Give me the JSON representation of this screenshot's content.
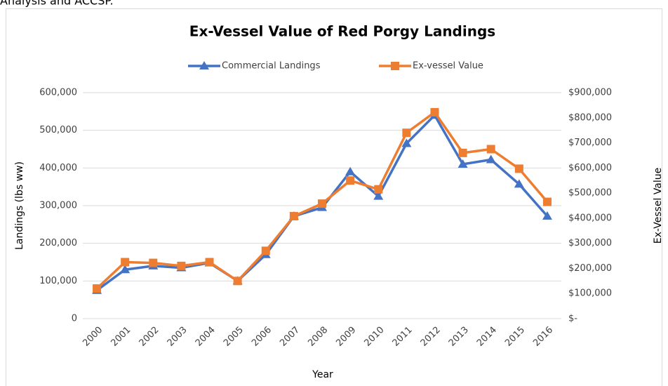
{
  "header_text": "Analysis and ACCSP.",
  "chart_data": {
    "type": "line",
    "title": "Ex-Vessel Value of Red Porgy Landings",
    "xlabel": "Year",
    "ylabel": "Landings (lbs ww)",
    "y2label": "Ex-Vessel Value",
    "categories": [
      "2000",
      "2001",
      "2002",
      "2003",
      "2004",
      "2005",
      "2006",
      "2007",
      "2008",
      "2009",
      "2010",
      "2011",
      "2012",
      "2013",
      "2014",
      "2015",
      "2016"
    ],
    "series": [
      {
        "name": "Commercial Landings",
        "color": "#4472c4",
        "marker": "triangle",
        "values": [
          75000,
          130000,
          140000,
          135000,
          148000,
          100000,
          170000,
          272000,
          295000,
          390000,
          325000,
          465000,
          540000,
          410000,
          422000,
          357000,
          272000
        ]
      },
      {
        "name": "Ex-vessel Value",
        "color": "#ed7d31",
        "marker": "square",
        "axis": "y2",
        "values": [
          120000,
          225000,
          222000,
          210000,
          225000,
          150000,
          270000,
          408000,
          458000,
          550000,
          515000,
          740000,
          822000,
          660000,
          675000,
          597000,
          465000
        ]
      }
    ],
    "ylim": [
      0,
      600000
    ],
    "yticks": [
      0,
      {
        "value": 100000,
        "label": "100,000"
      },
      {
        "value": 200000,
        "label": "200,000"
      },
      {
        "value": 300000,
        "label": "300,000"
      },
      {
        "value": 400000,
        "label": "400,000"
      },
      {
        "value": 500000,
        "label": "500,000"
      },
      {
        "value": 600000,
        "label": "600,000"
      }
    ],
    "y2lim": [
      0,
      900000
    ],
    "y2ticks": [
      {
        "value": 0,
        "label": "$-"
      },
      {
        "value": 100000,
        "label": "$100,000"
      },
      {
        "value": 200000,
        "label": "$200,000"
      },
      {
        "value": 300000,
        "label": "$300,000"
      },
      {
        "value": 400000,
        "label": "$400,000"
      },
      {
        "value": 500000,
        "label": "$500,000"
      },
      {
        "value": 600000,
        "label": "$600,000"
      },
      {
        "value": 700000,
        "label": "$700,000"
      },
      {
        "value": 800000,
        "label": "$800,000"
      },
      {
        "value": 900000,
        "label": "$900,000"
      }
    ],
    "grid": true,
    "legend": "top"
  }
}
